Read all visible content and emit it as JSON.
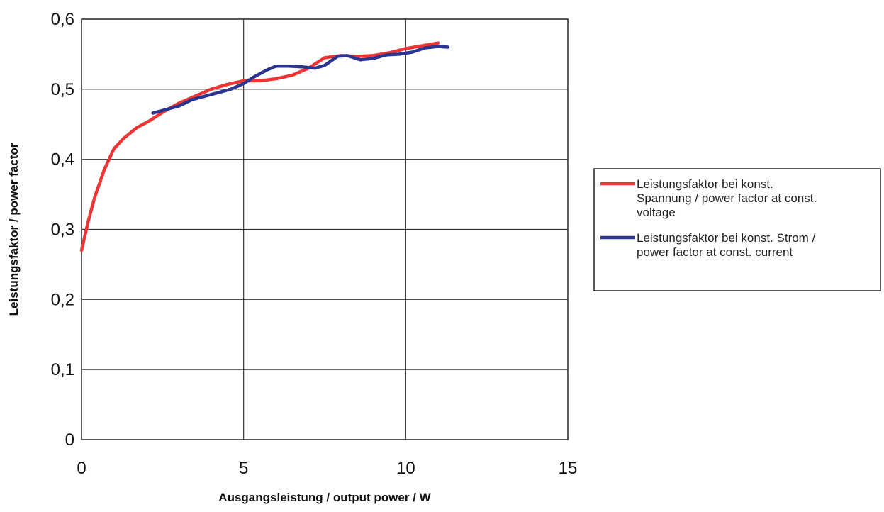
{
  "chart_data": {
    "type": "line",
    "xlabel": "Ausgangsleistung / output power / W",
    "ylabel": "Leistungsfaktor / power factor",
    "xlim": [
      0,
      15
    ],
    "ylim": [
      0,
      0.6
    ],
    "x_ticks": [
      {
        "value": 0,
        "label": "0"
      },
      {
        "value": 5,
        "label": "5"
      },
      {
        "value": 10,
        "label": "10"
      },
      {
        "value": 15,
        "label": "15"
      }
    ],
    "y_ticks": [
      {
        "value": 0,
        "label": "0"
      },
      {
        "value": 0.1,
        "label": "0,1"
      },
      {
        "value": 0.2,
        "label": "0,2"
      },
      {
        "value": 0.3,
        "label": "0,3"
      },
      {
        "value": 0.4,
        "label": "0,4"
      },
      {
        "value": 0.5,
        "label": "0,5"
      },
      {
        "value": 0.6,
        "label": "0,6"
      }
    ],
    "grid": true,
    "legend_position": "right",
    "series": [
      {
        "name": "Leistungsfaktor bei konst. Spannung / power factor at const. voltage",
        "name_lines": [
          "Leistungsfaktor bei konst.",
          "Spannung / power factor at const.",
          "voltage"
        ],
        "color": "#ee3535",
        "x": [
          0,
          0.2,
          0.4,
          0.7,
          1.0,
          1.3,
          1.7,
          2.1,
          2.5,
          3.0,
          3.5,
          4.0,
          4.5,
          5.0,
          5.5,
          6.0,
          6.5,
          7.0,
          7.5,
          8.0,
          8.5,
          9.0,
          9.5,
          10.0,
          10.5,
          11.0
        ],
        "y": [
          0.27,
          0.31,
          0.345,
          0.385,
          0.415,
          0.43,
          0.445,
          0.455,
          0.467,
          0.48,
          0.49,
          0.5,
          0.507,
          0.512,
          0.512,
          0.515,
          0.52,
          0.53,
          0.545,
          0.548,
          0.547,
          0.548,
          0.552,
          0.558,
          0.562,
          0.566
        ]
      },
      {
        "name": "Leistungsfaktor bei konst. Strom / power factor at const. current",
        "name_lines": [
          "Leistungsfaktor bei konst. Strom /",
          "power factor at const. current"
        ],
        "color": "#2b3590",
        "x": [
          2.2,
          2.6,
          3.0,
          3.4,
          3.8,
          4.2,
          4.6,
          5.0,
          5.3,
          5.7,
          6.0,
          6.4,
          6.8,
          7.2,
          7.5,
          7.9,
          8.2,
          8.6,
          9.0,
          9.4,
          9.8,
          10.2,
          10.6,
          11.0,
          11.3
        ],
        "y": [
          0.466,
          0.471,
          0.476,
          0.485,
          0.49,
          0.495,
          0.5,
          0.508,
          0.517,
          0.527,
          0.533,
          0.533,
          0.532,
          0.53,
          0.534,
          0.547,
          0.548,
          0.542,
          0.544,
          0.549,
          0.55,
          0.553,
          0.559,
          0.561,
          0.56
        ]
      }
    ]
  }
}
